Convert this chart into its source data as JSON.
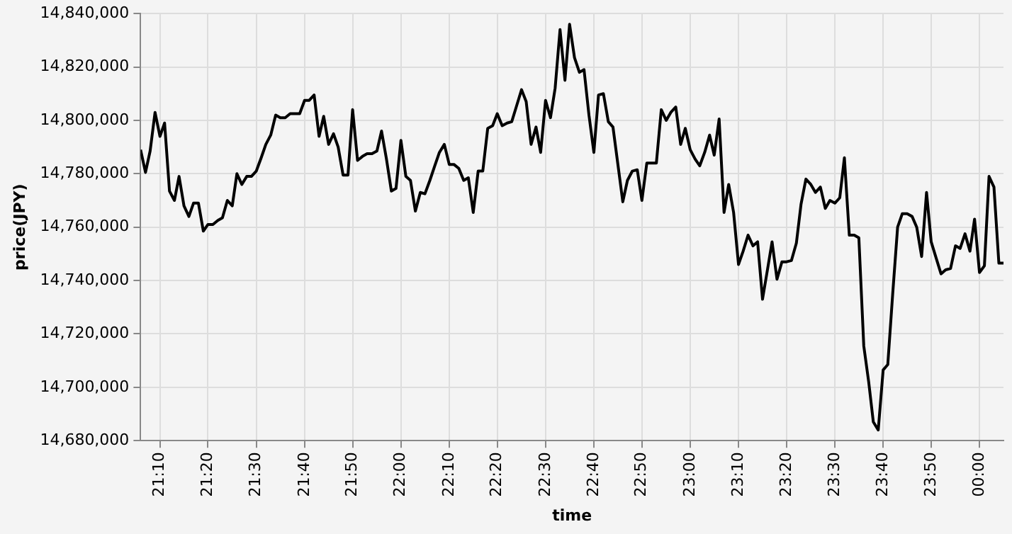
{
  "chart_data": {
    "type": "line",
    "xlabel": "time",
    "ylabel": "price(JPY)",
    "grid": true,
    "marker": "none",
    "xlim": [
      21.1,
      24.083
    ],
    "ylim": [
      14680000,
      14840000
    ],
    "xticks": [
      {
        "value": 21.167,
        "label": "21:10"
      },
      {
        "value": 21.333,
        "label": "21:20"
      },
      {
        "value": 21.5,
        "label": "21:30"
      },
      {
        "value": 21.667,
        "label": "21:40"
      },
      {
        "value": 21.833,
        "label": "21:50"
      },
      {
        "value": 22,
        "label": "22:00"
      },
      {
        "value": 22.167,
        "label": "22:10"
      },
      {
        "value": 22.333,
        "label": "22:20"
      },
      {
        "value": 22.5,
        "label": "22:30"
      },
      {
        "value": 22.667,
        "label": "22:40"
      },
      {
        "value": 22.833,
        "label": "22:50"
      },
      {
        "value": 23,
        "label": "23:00"
      },
      {
        "value": 23.167,
        "label": "23:10"
      },
      {
        "value": 23.333,
        "label": "23:20"
      },
      {
        "value": 23.5,
        "label": "23:30"
      },
      {
        "value": 23.667,
        "label": "23:40"
      },
      {
        "value": 23.833,
        "label": "23:50"
      },
      {
        "value": 24,
        "label": "00:00"
      }
    ],
    "yticks": [
      {
        "value": 14680000,
        "label": "14,680,000"
      },
      {
        "value": 14700000,
        "label": "14,700,000"
      },
      {
        "value": 14720000,
        "label": "14,720,000"
      },
      {
        "value": 14740000,
        "label": "14,740,000"
      },
      {
        "value": 14760000,
        "label": "14,760,000"
      },
      {
        "value": 14780000,
        "label": "14,780,000"
      },
      {
        "value": 14800000,
        "label": "14,800,000"
      },
      {
        "value": 14820000,
        "label": "14,820,000"
      },
      {
        "value": 14840000,
        "label": "14,840,000"
      }
    ],
    "x": [
      21.1,
      21.117,
      21.133,
      21.15,
      21.167,
      21.183,
      21.2,
      21.217,
      21.233,
      21.25,
      21.267,
      21.283,
      21.3,
      21.317,
      21.333,
      21.35,
      21.367,
      21.383,
      21.4,
      21.417,
      21.433,
      21.45,
      21.467,
      21.483,
      21.5,
      21.517,
      21.533,
      21.55,
      21.567,
      21.583,
      21.6,
      21.617,
      21.633,
      21.65,
      21.667,
      21.683,
      21.7,
      21.717,
      21.733,
      21.75,
      21.767,
      21.783,
      21.8,
      21.817,
      21.833,
      21.85,
      21.867,
      21.883,
      21.9,
      21.917,
      21.933,
      21.95,
      21.967,
      21.983,
      22,
      22.017,
      22.033,
      22.05,
      22.067,
      22.083,
      22.1,
      22.117,
      22.133,
      22.15,
      22.167,
      22.183,
      22.2,
      22.217,
      22.233,
      22.25,
      22.267,
      22.283,
      22.3,
      22.317,
      22.333,
      22.35,
      22.367,
      22.383,
      22.4,
      22.417,
      22.433,
      22.45,
      22.467,
      22.483,
      22.5,
      22.517,
      22.533,
      22.55,
      22.567,
      22.583,
      22.6,
      22.617,
      22.633,
      22.65,
      22.667,
      22.683,
      22.7,
      22.717,
      22.733,
      22.75,
      22.767,
      22.783,
      22.8,
      22.817,
      22.833,
      22.85,
      22.867,
      22.883,
      22.9,
      22.917,
      22.933,
      22.95,
      22.967,
      22.983,
      23,
      23.017,
      23.033,
      23.05,
      23.067,
      23.083,
      23.1,
      23.117,
      23.133,
      23.15,
      23.167,
      23.183,
      23.2,
      23.217,
      23.233,
      23.25,
      23.267,
      23.283,
      23.3,
      23.317,
      23.333,
      23.35,
      23.367,
      23.383,
      23.4,
      23.417,
      23.433,
      23.45,
      23.467,
      23.483,
      23.5,
      23.517,
      23.533,
      23.55,
      23.567,
      23.583,
      23.6,
      23.617,
      23.633,
      23.65,
      23.667,
      23.683,
      23.7,
      23.717,
      23.733,
      23.75,
      23.767,
      23.783,
      23.8,
      23.817,
      23.833,
      23.85,
      23.867,
      23.883,
      23.9,
      23.917,
      23.933,
      23.95,
      23.967,
      23.983,
      24,
      24.017,
      24.033,
      24.05,
      24.067,
      24.083
    ],
    "series": [
      {
        "color": "#000000",
        "values": [
          14789000,
          14780500,
          14788500,
          14803000,
          14794000,
          14799000,
          14773500,
          14770000,
          14779000,
          14768000,
          14764000,
          14769000,
          14769000,
          14758500,
          14761000,
          14761000,
          14762500,
          14763500,
          14770000,
          14768000,
          14780000,
          14776000,
          14779000,
          14779000,
          14781000,
          14786000,
          14791000,
          14794500,
          14802000,
          14801000,
          14801000,
          14802500,
          14802500,
          14802500,
          14807500,
          14807500,
          14809500,
          14794000,
          14801500,
          14791000,
          14795000,
          14790000,
          14779500,
          14779500,
          14804000,
          14785000,
          14786500,
          14787500,
          14787500,
          14788500,
          14796000,
          14785500,
          14773500,
          14774500,
          14792500,
          14779000,
          14777500,
          14766000,
          14773000,
          14772500,
          14777500,
          14783000,
          14788000,
          14791000,
          14783500,
          14783500,
          14782000,
          14777500,
          14778500,
          14765500,
          14781000,
          14781000,
          14797000,
          14798000,
          14802500,
          14798000,
          14799000,
          14799500,
          14805500,
          14811500,
          14807000,
          14791000,
          14797500,
          14788000,
          14807500,
          14801000,
          14812000,
          14834000,
          14815000,
          14836000,
          14823500,
          14818000,
          14819000,
          14802000,
          14788000,
          14809500,
          14810000,
          14799500,
          14797500,
          14783500,
          14769500,
          14777500,
          14781000,
          14781500,
          14770000,
          14784000,
          14784000,
          14784000,
          14804000,
          14800000,
          14803000,
          14805000,
          14791000,
          14797000,
          14789000,
          14785500,
          14783000,
          14788000,
          14794500,
          14787000,
          14800500,
          14765500,
          14776000,
          14765500,
          14746000,
          14751000,
          14757000,
          14753000,
          14754500,
          14733000,
          14744000,
          14754500,
          14740500,
          14747000,
          14747000,
          14747500,
          14754000,
          14768500,
          14778000,
          14776000,
          14773000,
          14775000,
          14767000,
          14770000,
          14769000,
          14771000,
          14786000,
          14757000,
          14757000,
          14756000,
          14715500,
          14702000,
          14687000,
          14684000,
          14706500,
          14708500,
          14735000,
          14760000,
          14765000,
          14765000,
          14764000,
          14760000,
          14749000,
          14773000,
          14754500,
          14748500,
          14742500,
          14744000,
          14744500,
          14753000,
          14752000,
          14757500,
          14751000,
          14763000,
          14743000,
          14745500,
          14779000,
          14775000,
          14746500,
          14746500
        ]
      }
    ]
  }
}
